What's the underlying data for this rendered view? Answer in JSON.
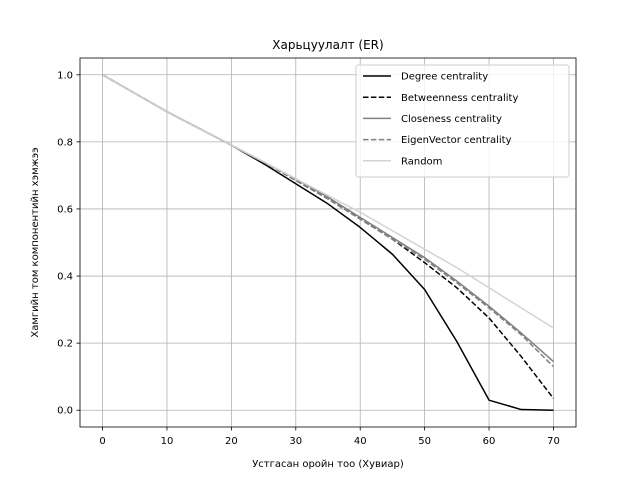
{
  "chart_data": {
    "type": "line",
    "title": "Харьцуулалт (ER)",
    "xlabel": "Устгасан оройн тоо (Хувиар)",
    "ylabel": "Хамгийн том компонентийн хэмжээ",
    "xlim": [
      -3.5,
      73.5
    ],
    "ylim": [
      -0.05,
      1.05
    ],
    "xticks": [
      0,
      10,
      20,
      30,
      40,
      50,
      60,
      70
    ],
    "yticks": [
      0.0,
      0.2,
      0.4,
      0.6,
      0.8,
      1.0
    ],
    "xtick_labels": [
      "0",
      "10",
      "20",
      "30",
      "40",
      "50",
      "60",
      "70"
    ],
    "ytick_labels": [
      "0.0",
      "0.2",
      "0.4",
      "0.6",
      "0.8",
      "1.0"
    ],
    "grid": true,
    "legend_position": "top-right",
    "x": [
      0,
      5,
      10,
      15,
      20,
      25,
      30,
      35,
      40,
      45,
      50,
      55,
      60,
      65,
      70
    ],
    "series": [
      {
        "name": "Degree centrality",
        "color": "#000000",
        "dash": "solid",
        "values": [
          1.0,
          0.945,
          0.89,
          0.84,
          0.79,
          0.735,
          0.675,
          0.615,
          0.545,
          0.465,
          0.36,
          0.205,
          0.03,
          0.002,
          0.0
        ]
      },
      {
        "name": "Betweenness centrality",
        "color": "#000000",
        "dash": "dashed",
        "values": [
          1.0,
          0.945,
          0.89,
          0.84,
          0.79,
          0.74,
          0.685,
          0.63,
          0.57,
          0.51,
          0.44,
          0.365,
          0.275,
          0.16,
          0.035
        ]
      },
      {
        "name": "Closeness centrality",
        "color": "#808080",
        "dash": "solid",
        "values": [
          1.0,
          0.945,
          0.89,
          0.84,
          0.79,
          0.74,
          0.69,
          0.635,
          0.575,
          0.515,
          0.455,
          0.385,
          0.31,
          0.23,
          0.145
        ]
      },
      {
        "name": "EigenVector centrality",
        "color": "#808080",
        "dash": "dashed",
        "values": [
          1.0,
          0.945,
          0.89,
          0.84,
          0.79,
          0.74,
          0.685,
          0.63,
          0.57,
          0.51,
          0.45,
          0.38,
          0.305,
          0.225,
          0.13
        ]
      },
      {
        "name": "Random",
        "color": "#d3d3d3",
        "dash": "solid",
        "values": [
          1.0,
          0.945,
          0.89,
          0.84,
          0.79,
          0.74,
          0.69,
          0.64,
          0.59,
          0.535,
          0.48,
          0.425,
          0.365,
          0.305,
          0.245
        ]
      }
    ]
  }
}
